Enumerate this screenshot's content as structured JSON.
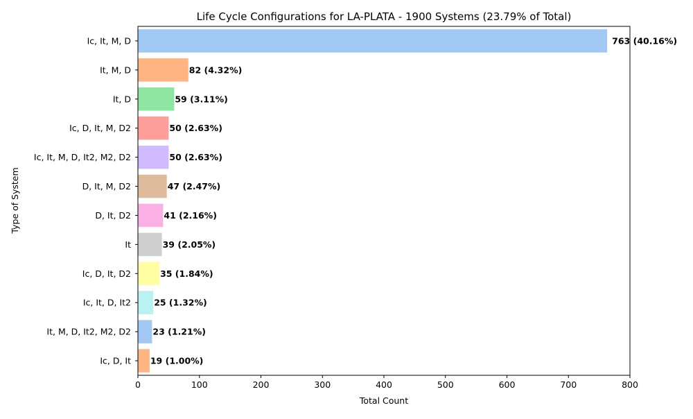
{
  "chart_data": {
    "type": "bar",
    "orientation": "horizontal",
    "title": "Life Cycle Configurations for LA-PLATA - 1900 Systems (23.79% of Total)",
    "xlabel": "Total Count",
    "ylabel": "Type of System",
    "xlim": [
      0,
      800
    ],
    "xticks": [
      "0",
      "100",
      "200",
      "300",
      "400",
      "500",
      "600",
      "700",
      "800"
    ],
    "grid": false,
    "categories": [
      "Ic, It, M, D",
      "It, M, D",
      "It, D",
      "Ic, D, It, M, D2",
      "Ic, It, M, D, It2, M2, D2",
      "D, It, M, D2",
      "D, It, D2",
      "It",
      "Ic, D, It, D2",
      "Ic, It, D, It2",
      "It, M, D, It2, M2, D2",
      "Ic, D, It"
    ],
    "values": [
      763,
      82,
      59,
      50,
      50,
      47,
      41,
      39,
      35,
      25,
      23,
      19
    ],
    "data_labels": [
      "763 (40.16%)",
      "82 (4.32%)",
      "59 (3.11%)",
      "50 (2.63%)",
      "50 (2.63%)",
      "47 (2.47%)",
      "41 (2.16%)",
      "39 (2.05%)",
      "35 (1.84%)",
      "25 (1.32%)",
      "23 (1.21%)",
      "19 (1.00%)"
    ],
    "colors": [
      "#a1c9f4",
      "#ffb482",
      "#8de5a1",
      "#ff9f9b",
      "#d0bbff",
      "#debb9b",
      "#fab0e4",
      "#cfcfcf",
      "#fffea3",
      "#b9f2f0",
      "#a1c9f4",
      "#ffb482"
    ]
  }
}
